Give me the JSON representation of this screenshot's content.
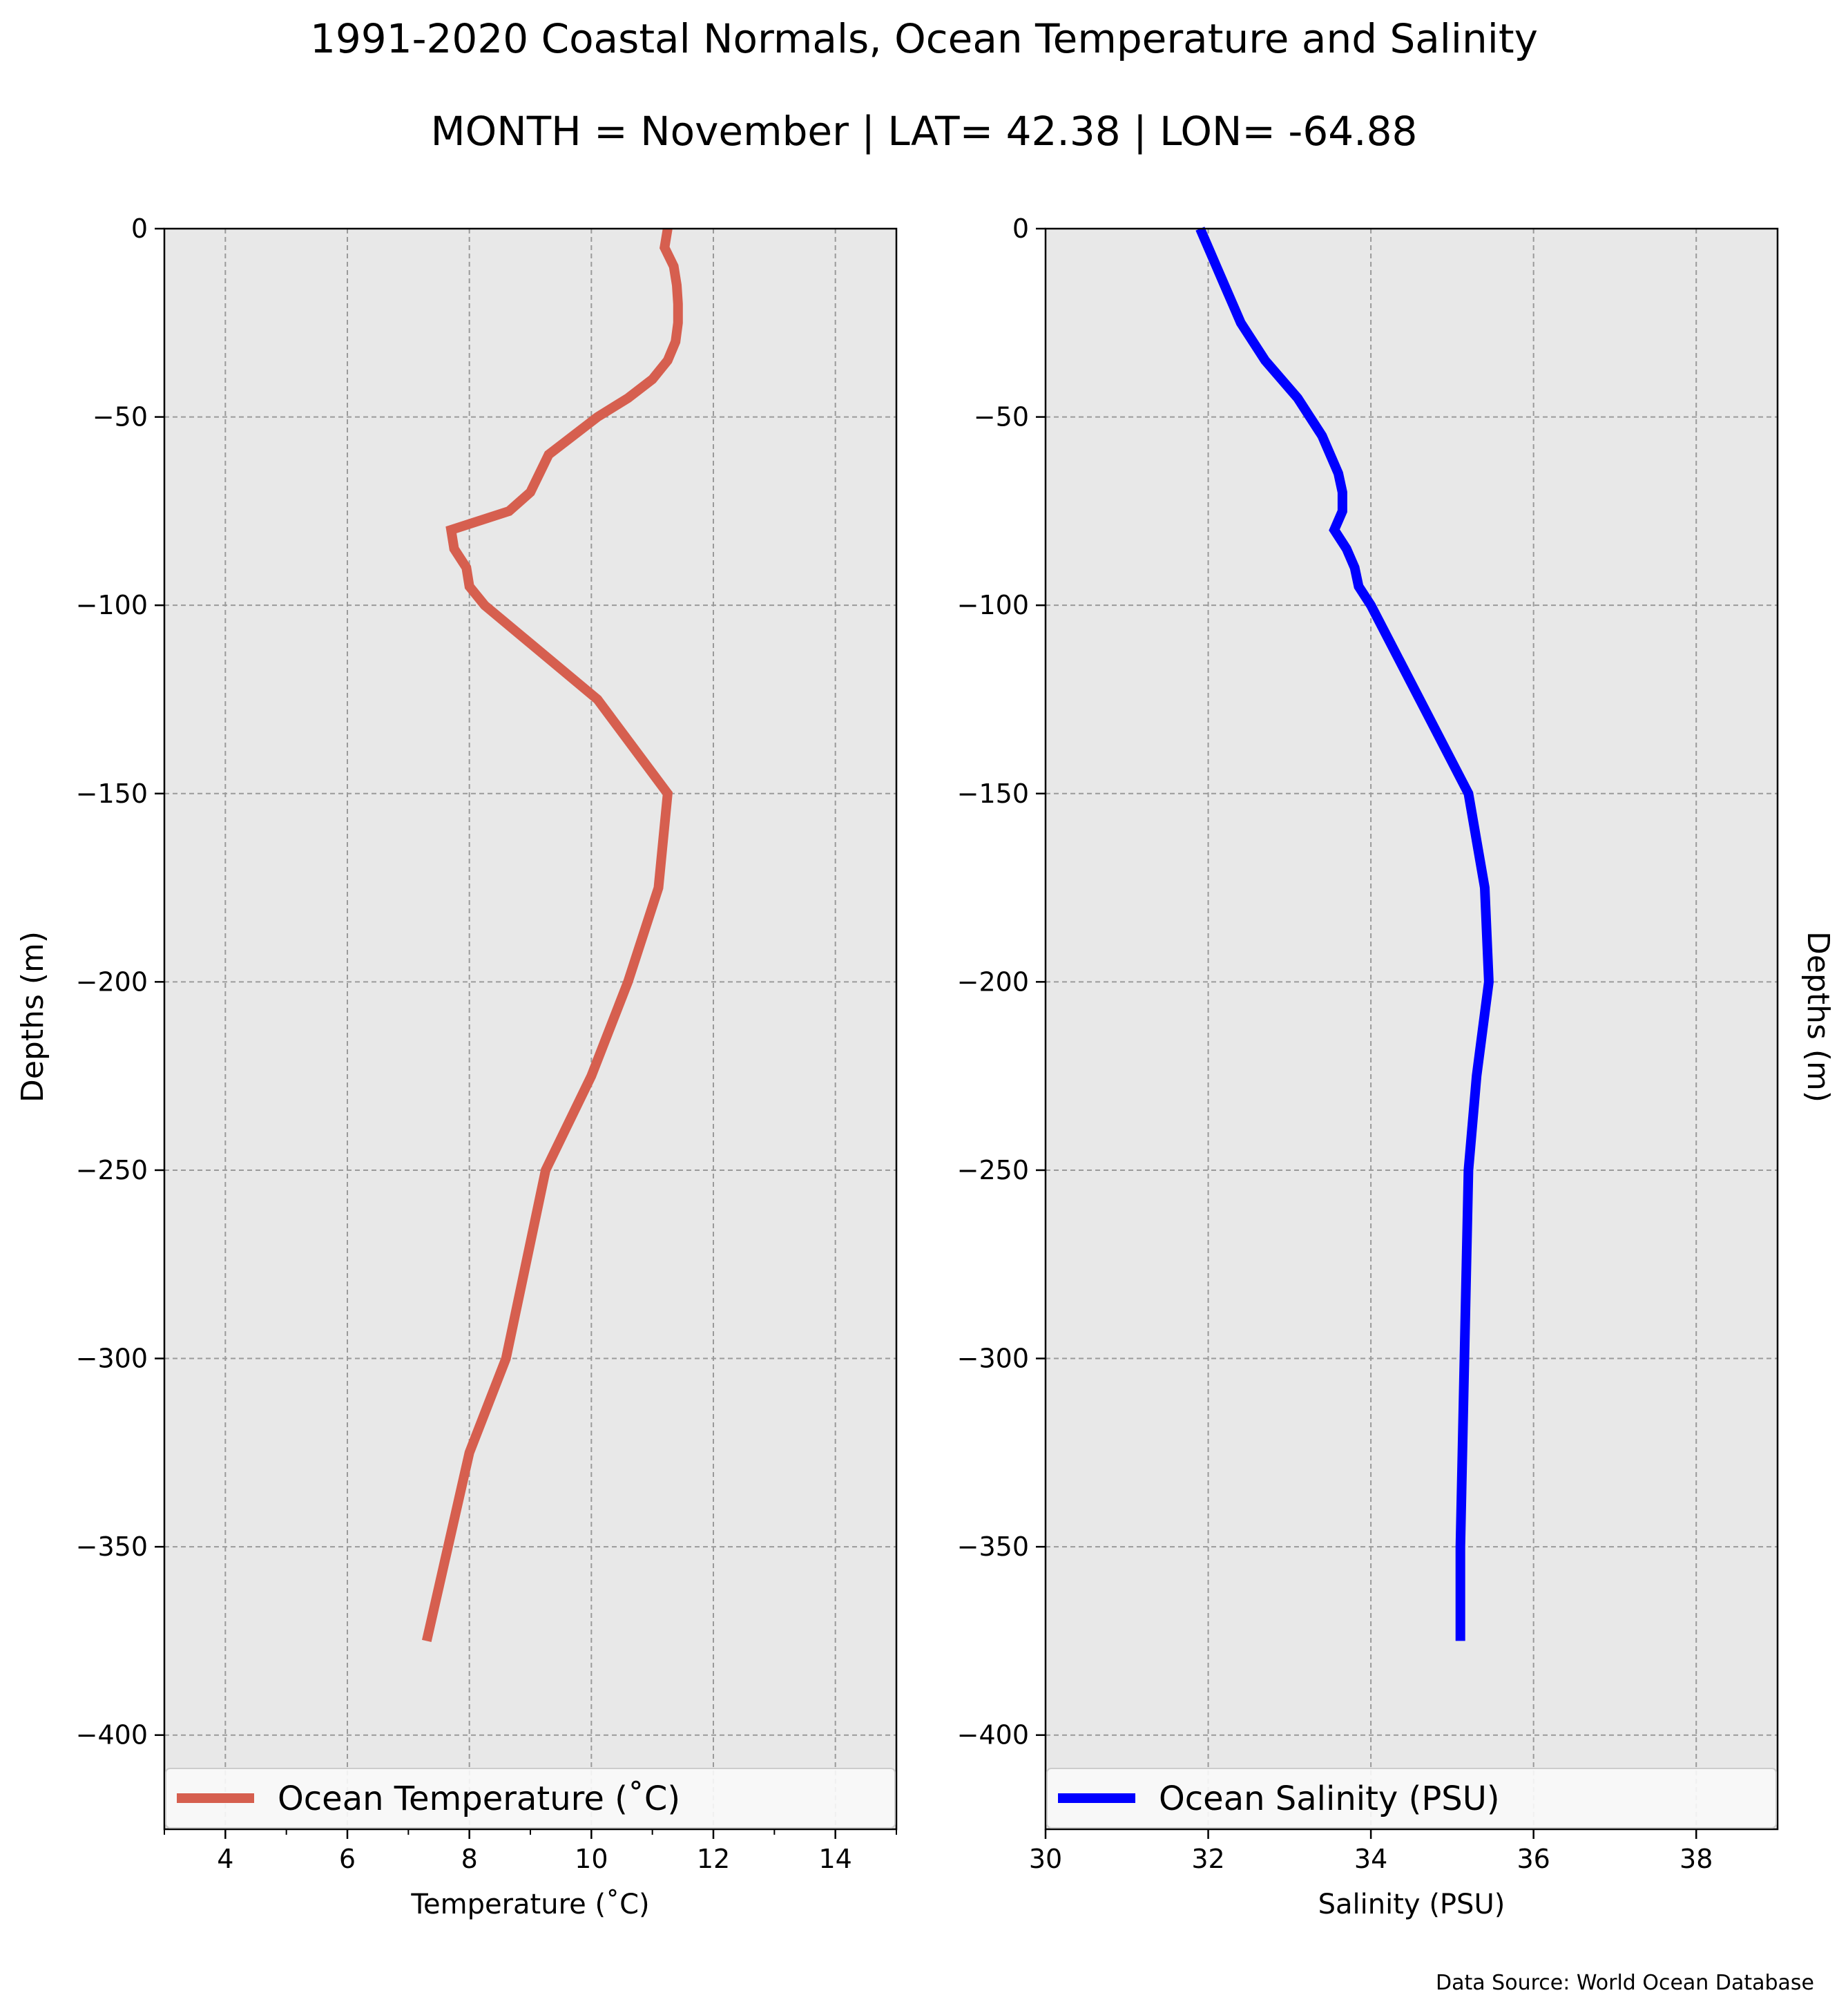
{
  "figure": {
    "title": "1991-2020 Coastal Normals, Ocean Temperature and Salinity",
    "subtitle": "MONTH = November | LAT= 42.38 | LON= -64.88",
    "source": "Data Source: World Ocean Database"
  },
  "chart_data": [
    {
      "type": "line",
      "xlabel": "Temperature ($^\\circ$C)",
      "xlabel_display": "Temperature (˚C)",
      "ylabel": "Depths (m)",
      "xlim": [
        3,
        15
      ],
      "ylim": [
        -425,
        0
      ],
      "xticks": [
        4,
        6,
        8,
        10,
        12,
        14
      ],
      "xtick_labels": [
        "4",
        "6",
        "8",
        "10",
        "12",
        "14"
      ],
      "yticks": [
        0,
        -50,
        -100,
        -150,
        -200,
        -250,
        -300,
        -350,
        -400
      ],
      "ytick_labels": [
        "0",
        "−50",
        "−100",
        "−150",
        "−200",
        "−250",
        "−300",
        "−350",
        "−400"
      ],
      "grid": true,
      "legend_position": "bottom",
      "series": [
        {
          "name": "Ocean Temperature (˚C)",
          "color": "#d65f4f",
          "points": [
            [
              11.25,
              0
            ],
            [
              11.2,
              -5
            ],
            [
              11.35,
              -10
            ],
            [
              11.4,
              -15
            ],
            [
              11.42,
              -20
            ],
            [
              11.42,
              -25
            ],
            [
              11.38,
              -30
            ],
            [
              11.25,
              -35
            ],
            [
              11.0,
              -40
            ],
            [
              10.6,
              -45
            ],
            [
              10.1,
              -50
            ],
            [
              9.3,
              -60
            ],
            [
              9.0,
              -70
            ],
            [
              8.65,
              -75
            ],
            [
              7.7,
              -80
            ],
            [
              7.75,
              -85
            ],
            [
              7.95,
              -90
            ],
            [
              8.0,
              -95
            ],
            [
              8.25,
              -100
            ],
            [
              10.1,
              -125
            ],
            [
              11.25,
              -150
            ],
            [
              11.1,
              -175
            ],
            [
              10.6,
              -200
            ],
            [
              10.0,
              -225
            ],
            [
              9.25,
              -250
            ],
            [
              8.6,
              -300
            ],
            [
              8.0,
              -325
            ],
            [
              7.3,
              -375
            ]
          ]
        }
      ]
    },
    {
      "type": "line",
      "xlabel": "Salinity (PSU)",
      "ylabel": "Depths (m)",
      "xlim": [
        30,
        39
      ],
      "ylim": [
        -425,
        0
      ],
      "xticks": [
        30,
        32,
        34,
        36,
        38
      ],
      "xtick_labels": [
        "30",
        "32",
        "34",
        "36",
        "38"
      ],
      "yticks": [
        0,
        -50,
        -100,
        -150,
        -200,
        -250,
        -300,
        -350,
        -400
      ],
      "ytick_labels": [
        "0",
        "−50",
        "−100",
        "−150",
        "−200",
        "−250",
        "−300",
        "−350",
        "−400"
      ],
      "grid": true,
      "legend_position": "bottom",
      "series": [
        {
          "name": "Ocean Salinity (PSU)",
          "color": "#0000ff",
          "points": [
            [
              31.9,
              0
            ],
            [
              32.0,
              -5
            ],
            [
              32.1,
              -10
            ],
            [
              32.2,
              -15
            ],
            [
              32.3,
              -20
            ],
            [
              32.4,
              -25
            ],
            [
              32.7,
              -35
            ],
            [
              33.1,
              -45
            ],
            [
              33.4,
              -55
            ],
            [
              33.6,
              -65
            ],
            [
              33.65,
              -70
            ],
            [
              33.65,
              -75
            ],
            [
              33.55,
              -80
            ],
            [
              33.7,
              -85
            ],
            [
              33.8,
              -90
            ],
            [
              33.85,
              -95
            ],
            [
              34.0,
              -100
            ],
            [
              34.6,
              -125
            ],
            [
              35.2,
              -150
            ],
            [
              35.4,
              -175
            ],
            [
              35.45,
              -200
            ],
            [
              35.3,
              -225
            ],
            [
              35.2,
              -250
            ],
            [
              35.1,
              -350
            ],
            [
              35.1,
              -375
            ]
          ]
        }
      ]
    }
  ]
}
